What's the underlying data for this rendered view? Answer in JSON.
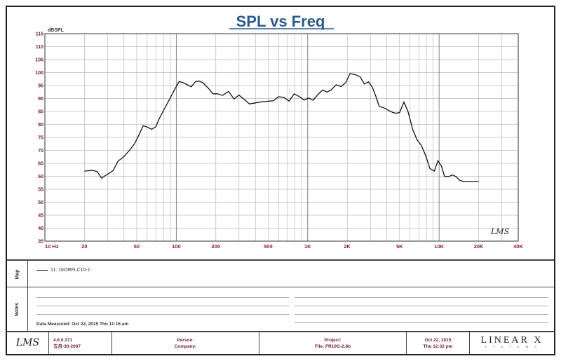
{
  "chart_data": {
    "type": "line",
    "title": "SPL vs Freq",
    "ylabel": "dBSPL",
    "xscale": "log",
    "xlim": [
      10,
      40000
    ],
    "ylim": [
      35,
      115
    ],
    "yticks": [
      "115",
      "110",
      "105",
      "100",
      "95",
      "90",
      "85",
      "80",
      "75",
      "70",
      "65",
      "60",
      "55",
      "50",
      "45",
      "40",
      "35"
    ],
    "xticks": [
      {
        "value": 10,
        "label": "10  Hz"
      },
      {
        "value": 20,
        "label": "20"
      },
      {
        "value": 50,
        "label": "50"
      },
      {
        "value": 100,
        "label": "100"
      },
      {
        "value": 200,
        "label": "200"
      },
      {
        "value": 500,
        "label": "500"
      },
      {
        "value": 1000,
        "label": "1K"
      },
      {
        "value": 2000,
        "label": "2K"
      },
      {
        "value": 5000,
        "label": "5K"
      },
      {
        "value": 10000,
        "label": "10K"
      },
      {
        "value": 20000,
        "label": "20K"
      },
      {
        "value": 40000,
        "label": "40K"
      }
    ],
    "grid": true,
    "series": [
      {
        "name": "11: 16ORFLC10-1",
        "color": "#111111",
        "x": [
          20,
          23,
          25,
          27,
          30,
          33,
          36,
          40,
          44,
          48,
          52,
          56,
          60,
          65,
          70,
          74,
          80,
          88,
          96,
          105,
          112,
          120,
          130,
          140,
          150,
          160,
          175,
          190,
          205,
          225,
          250,
          275,
          300,
          330,
          360,
          400,
          430,
          470,
          510,
          550,
          600,
          660,
          720,
          790,
          860,
          940,
          1020,
          1100,
          1200,
          1300,
          1400,
          1500,
          1650,
          1800,
          1950,
          2100,
          2300,
          2500,
          2700,
          2900,
          3100,
          3300,
          3500,
          3800,
          4100,
          4400,
          4700,
          5000,
          5400,
          5800,
          6300,
          6800,
          7300,
          7900,
          8500,
          9200,
          9800,
          10400,
          11000,
          11800,
          12700,
          13500,
          14300,
          15200,
          16000,
          17000,
          18000,
          19000,
          20000
        ],
        "y": [
          62,
          62.3,
          61.8,
          59.3,
          60.8,
          62.2,
          65.8,
          67.6,
          70,
          72.5,
          76,
          79.5,
          79,
          78.1,
          79.2,
          82.1,
          85.4,
          89.3,
          93,
          96.5,
          96.2,
          95.4,
          94.5,
          96.5,
          96.7,
          96,
          94,
          91.8,
          91.8,
          91.2,
          92.7,
          89.8,
          91.3,
          89.6,
          87.9,
          88.3,
          88.6,
          88.8,
          89,
          89.1,
          90.7,
          90.4,
          89,
          91.8,
          90.8,
          89.4,
          90.2,
          89.3,
          91.6,
          93.3,
          92.5,
          93.2,
          95.3,
          94.6,
          96.2,
          99.6,
          99.2,
          98.4,
          95.6,
          96.4,
          94.4,
          90.8,
          87,
          86.4,
          85.5,
          84.7,
          84.3,
          84.6,
          88.6,
          85,
          78,
          74,
          72,
          68,
          63,
          62,
          66,
          64,
          60,
          59.9,
          60.5,
          59.8,
          58.5,
          58,
          58,
          58,
          58,
          58,
          58
        ]
      }
    ],
    "annotation": "LMS"
  },
  "legend": {
    "entry": "11: 16ORFLC10-1"
  },
  "panels": {
    "map_label": "Map",
    "notes_label": "Notes"
  },
  "notes": {
    "date_measured": "Data Measured: Oct 22, 2015  Thu 11:16 am"
  },
  "footer": {
    "logo": "LMS",
    "version": "4.6.0.371",
    "version_date": "五月-30-2007",
    "person_label": "Person:",
    "company_label": "Company:",
    "project_label": "Project:",
    "file_label": "File: FR10G-2.8b",
    "date": "Oct 22, 2015",
    "time": "Thu 12:32 pm",
    "brand": "LINEAR X",
    "brand_sub": "S Y S T E M S"
  }
}
